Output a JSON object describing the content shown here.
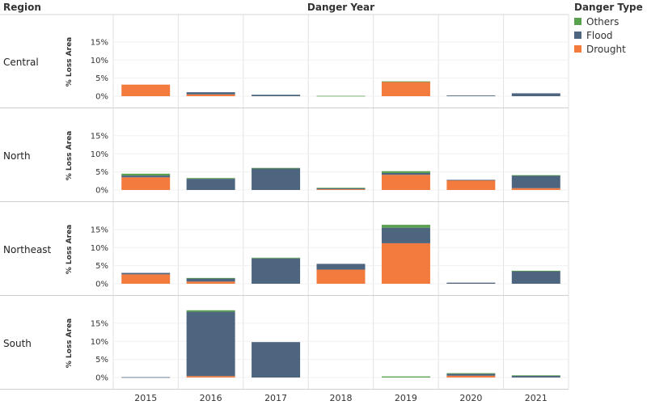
{
  "chart_data": {
    "type": "bar",
    "stacked": true,
    "row_header": "Region",
    "column_header": "Danger Year",
    "ylabel": "% Loss Area",
    "ylim": [
      0,
      19
    ],
    "yticks": [
      "0%",
      "5%",
      "10%",
      "15%"
    ],
    "yticks_values": [
      0,
      5,
      10,
      15
    ],
    "columns": [
      "2015",
      "2016",
      "2017",
      "2018",
      "2019",
      "2020",
      "2021"
    ],
    "legend": {
      "title": "Danger Type",
      "position": "top-right",
      "items": [
        {
          "name": "Others",
          "color": "#59a14f"
        },
        {
          "name": "Flood",
          "color": "#4e6580"
        },
        {
          "name": "Drought",
          "color": "#f47b3e"
        }
      ]
    },
    "stack_order": [
      "Drought",
      "Flood",
      "Others"
    ],
    "rows": [
      {
        "region": "Central",
        "Drought": [
          3.2,
          0.5,
          0,
          0,
          4.0,
          0,
          0
        ],
        "Flood": [
          0,
          0.6,
          0.4,
          0,
          0,
          0.2,
          0.8
        ],
        "Others": [
          0,
          0,
          0,
          0.1,
          0.1,
          0,
          0
        ]
      },
      {
        "region": "North",
        "Drought": [
          3.5,
          0,
          0,
          0.2,
          4.2,
          2.7,
          0.5
        ],
        "Flood": [
          0.5,
          3.1,
          6.0,
          0.3,
          0.5,
          0.1,
          3.5
        ],
        "Others": [
          0.5,
          0.2,
          0.1,
          0.1,
          0.5,
          0,
          0.1
        ]
      },
      {
        "region": "Northeast",
        "Drought": [
          2.6,
          0.6,
          0,
          3.9,
          11.2,
          0,
          0
        ],
        "Flood": [
          0.4,
          0.9,
          7.0,
          1.6,
          4.3,
          0.3,
          3.5
        ],
        "Others": [
          0,
          0.1,
          0.2,
          0,
          0.8,
          0,
          0.1
        ]
      },
      {
        "region": "South",
        "Drought": [
          0,
          0.4,
          0,
          0,
          0,
          0.5,
          0
        ],
        "Flood": [
          0.1,
          17.8,
          9.8,
          0,
          0,
          0.5,
          0.5
        ],
        "Others": [
          0,
          0.4,
          0,
          0,
          0.3,
          0.2,
          0.1
        ]
      }
    ]
  }
}
